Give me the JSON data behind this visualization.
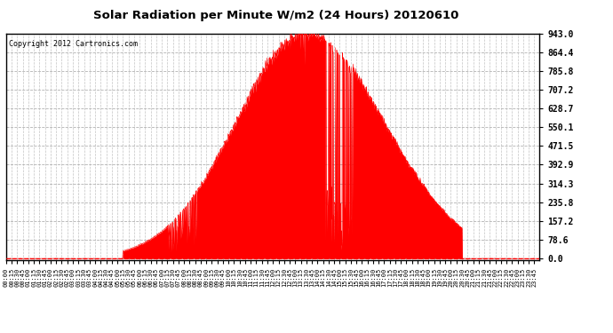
{
  "title": "Solar Radiation per Minute W/m2 (24 Hours) 20120610",
  "copyright_text": "Copyright 2012 Cartronics.com",
  "y_max": 943.0,
  "y_ticks": [
    0.0,
    78.6,
    157.2,
    235.8,
    314.3,
    392.9,
    471.5,
    550.1,
    628.7,
    707.2,
    785.8,
    864.4,
    943.0
  ],
  "fill_color": "#FF0000",
  "line_color": "#FF0000",
  "background_color": "#FFFFFF",
  "plot_bg_color": "#FFFFFF",
  "dashed_line_color": "#FF0000",
  "grid_color": "#AAAAAA",
  "title_color": "#000000",
  "copyright_color": "#000000",
  "x_label_color": "#000000",
  "y_label_color": "#000000",
  "border_color": "#000000",
  "sunrise_min": 315,
  "sunset_min": 1230,
  "peak_min": 810,
  "peak_val": 943.0,
  "sigma_rise": 190,
  "sigma_set": 210
}
